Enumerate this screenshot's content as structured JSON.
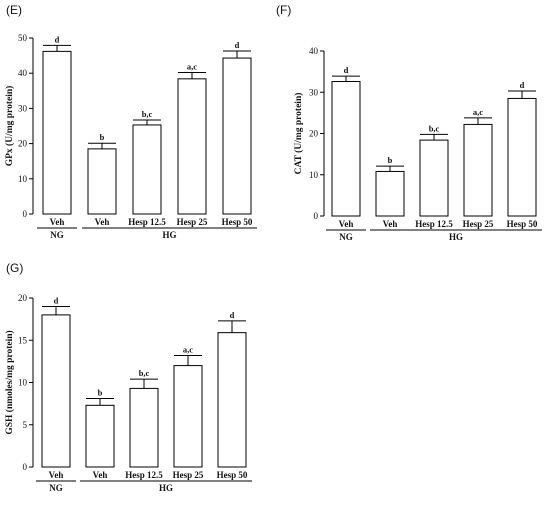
{
  "chart_data": [
    {
      "type": "bar",
      "panel_label": "(E)",
      "ylabel": "GPx (U/mg protein)",
      "ylim": [
        0,
        50
      ],
      "yticks": [
        0,
        10,
        20,
        30,
        40,
        50
      ],
      "categories": [
        "Veh",
        "Veh",
        "Hesp 12.5",
        "Hesp 25",
        "Hesp 50"
      ],
      "values": [
        46.2,
        18.5,
        25.3,
        38.4,
        44.3
      ],
      "errors": [
        1.7,
        1.6,
        1.4,
        1.8,
        2.0
      ],
      "annotations": [
        "d",
        "b",
        "b,c",
        "a,c",
        "d"
      ],
      "groups": [
        {
          "label": "NG",
          "from": 0,
          "to": 0
        },
        {
          "label": "HG",
          "from": 1,
          "to": 4
        }
      ]
    },
    {
      "type": "bar",
      "panel_label": "(F)",
      "ylabel": "CAT (U/mg protein)",
      "ylim": [
        0,
        40
      ],
      "yticks": [
        0,
        10,
        20,
        30,
        40
      ],
      "categories": [
        "Veh",
        "Veh",
        "Hesp 12.5",
        "Hesp 25",
        "Hesp 50"
      ],
      "values": [
        32.6,
        10.8,
        18.4,
        22.2,
        28.5
      ],
      "errors": [
        1.3,
        1.3,
        1.4,
        1.6,
        1.8
      ],
      "annotations": [
        "d",
        "b",
        "b,c",
        "a,c",
        "d"
      ],
      "groups": [
        {
          "label": "NG",
          "from": 0,
          "to": 0
        },
        {
          "label": "HG",
          "from": 1,
          "to": 4
        }
      ]
    },
    {
      "type": "bar",
      "panel_label": "(G)",
      "ylabel": "GSH (nmoles/mg protein)",
      "ylim": [
        0,
        20
      ],
      "yticks": [
        0,
        5,
        10,
        15,
        20
      ],
      "categories": [
        "Veh",
        "Veh",
        "Hesp 12.5",
        "Hesp 25",
        "Hesp 50"
      ],
      "values": [
        18.0,
        7.3,
        9.3,
        12.0,
        15.9
      ],
      "errors": [
        1.0,
        0.8,
        1.1,
        1.2,
        1.4
      ],
      "annotations": [
        "d",
        "b",
        "b,c",
        "a,c",
        "d"
      ],
      "groups": [
        {
          "label": "NG",
          "from": 0,
          "to": 0
        },
        {
          "label": "HG",
          "from": 1,
          "to": 4
        }
      ]
    }
  ]
}
